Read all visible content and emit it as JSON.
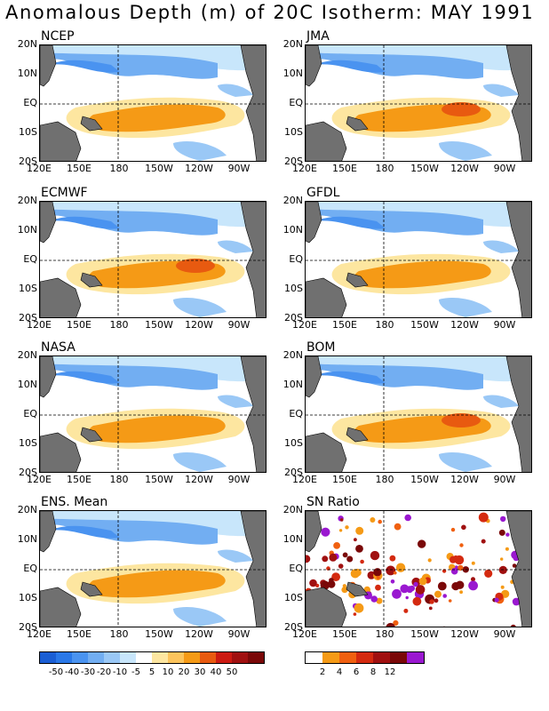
{
  "title": "Anomalous Depth (m) of 20C Isotherm: MAY 1991",
  "panels": [
    {
      "name": "NCEP"
    },
    {
      "name": "JMA"
    },
    {
      "name": "ECMWF"
    },
    {
      "name": "GFDL"
    },
    {
      "name": "NASA"
    },
    {
      "name": "BOM"
    },
    {
      "name": "ENS. Mean"
    },
    {
      "name": "SN Ratio"
    }
  ],
  "lat_labels": [
    "20N",
    "10N",
    "EQ",
    "10S",
    "20S"
  ],
  "lon_labels": [
    "120E",
    "150E",
    "180",
    "150W",
    "120W",
    "90W"
  ],
  "colorbar_anom": {
    "labels": [
      "-50",
      "-40",
      "-30",
      "-20",
      "-10",
      "-5",
      "5",
      "10",
      "20",
      "30",
      "40",
      "50"
    ],
    "colors": [
      "#1a5ed4",
      "#2a78e8",
      "#4a93f0",
      "#72aef2",
      "#9ac8f6",
      "#c8e6fb",
      "#ffffff",
      "#fde6a0",
      "#fcc45c",
      "#f59a16",
      "#e85a10",
      "#cc1a12",
      "#a01010",
      "#7a0808"
    ]
  },
  "colorbar_sn": {
    "labels": [
      "2",
      "4",
      "6",
      "8",
      "12"
    ],
    "colors": [
      "#ffffff",
      "#f59a16",
      "#f06010",
      "#d42a10",
      "#a01010",
      "#7a0808",
      "#9a18d0"
    ]
  },
  "colors": {
    "land": "#707070",
    "cold": "#9ac8f6",
    "warm": "#f59a16"
  }
}
